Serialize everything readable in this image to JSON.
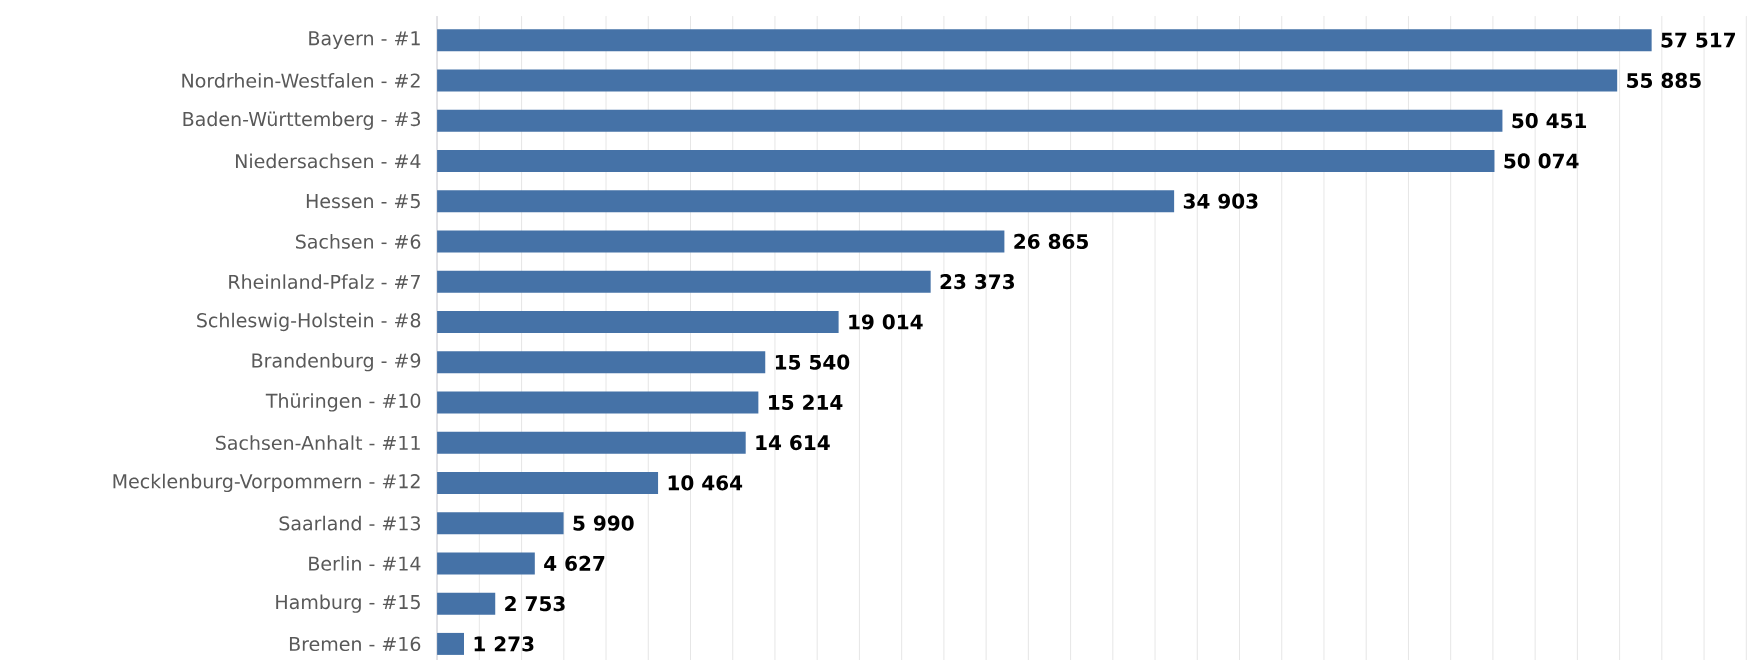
{
  "chart_data": {
    "type": "bar",
    "orientation": "horizontal",
    "categories": [
      "Bayern - #1",
      "Nordrhein-Westfalen - #2",
      "Baden-Württemberg - #3",
      "Niedersachsen - #4",
      "Hessen - #5",
      "Sachsen - #6",
      "Rheinland-Pfalz - #7",
      "Schleswig-Holstein - #8",
      "Brandenburg - #9",
      "Thüringen - #10",
      "Sachsen-Anhalt - #11",
      "Mecklenburg-Vorpommern - #12",
      "Saarland - #13",
      "Berlin - #14",
      "Hamburg - #15",
      "Bremen - #16"
    ],
    "values": [
      57517,
      55885,
      50451,
      50074,
      34903,
      26865,
      23373,
      19014,
      15540,
      15214,
      14614,
      10464,
      5990,
      4627,
      2753,
      1273
    ],
    "value_labels": [
      "57 517",
      "55 885",
      "50 451",
      "50 074",
      "34 903",
      "26 865",
      "23 373",
      "19 014",
      "15 540",
      "15 214",
      "14 614",
      "10 464",
      "5 990",
      "4 627",
      "2 753",
      "1 273"
    ],
    "color": "#4572a7",
    "grid": "x"
  }
}
